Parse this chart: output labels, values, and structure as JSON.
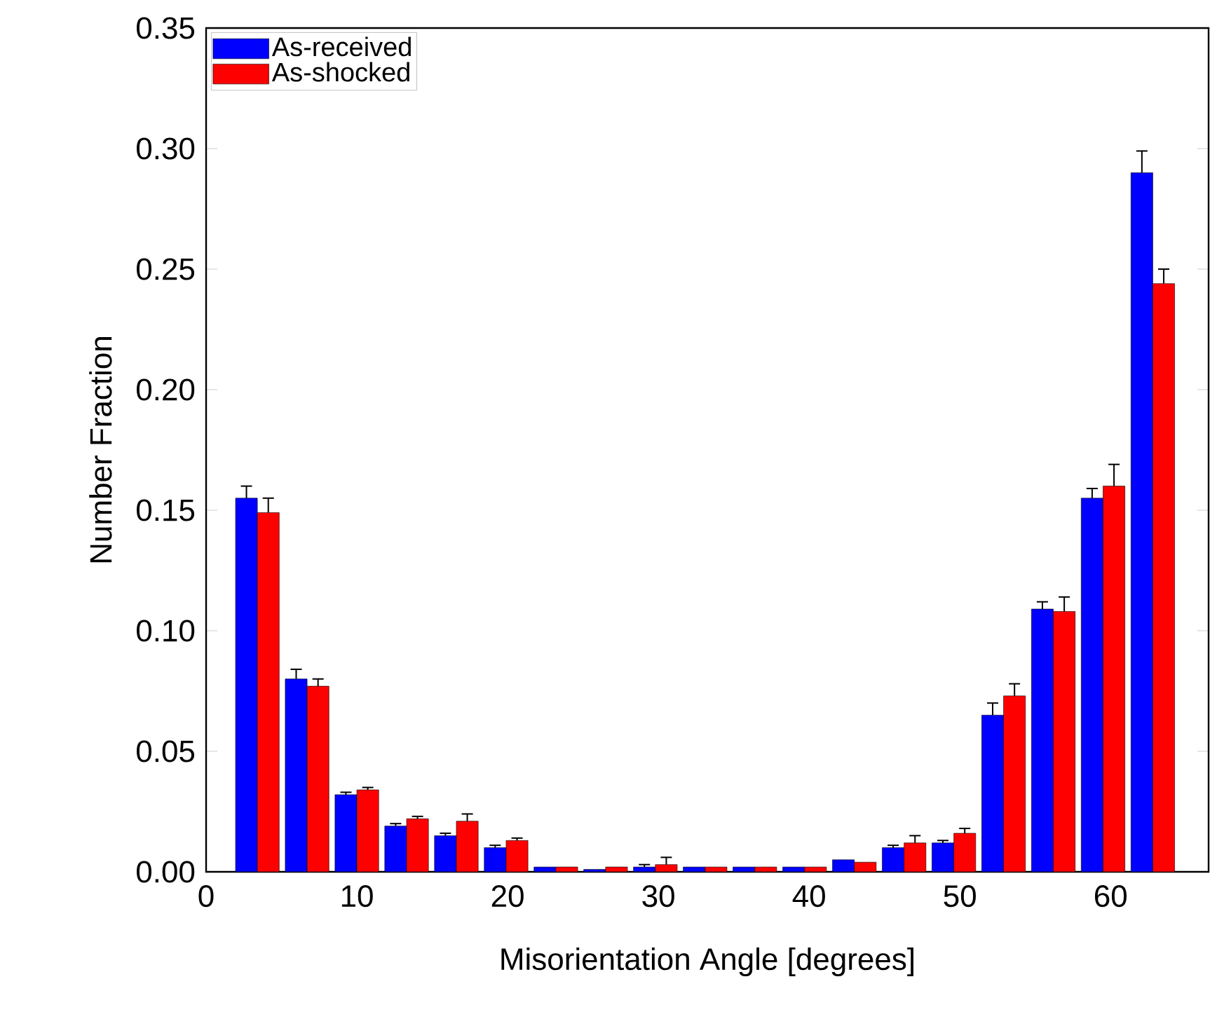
{
  "chart_data": {
    "type": "bar",
    "xlabel": "Misorientation Angle [degrees]",
    "ylabel": "Number Fraction",
    "x": [
      3.4,
      6.7,
      10.0,
      13.3,
      16.6,
      19.9,
      23.2,
      26.5,
      29.8,
      33.1,
      36.4,
      39.7,
      43.0,
      46.3,
      49.6,
      52.9,
      56.2,
      59.5,
      62.8
    ],
    "series": [
      {
        "name": "As-received",
        "color": "#0000ff",
        "values": [
          0.155,
          0.08,
          0.032,
          0.019,
          0.015,
          0.01,
          0.002,
          0.001,
          0.002,
          0.002,
          0.002,
          0.002,
          0.005,
          0.01,
          0.012,
          0.065,
          0.109,
          0.155,
          0.29
        ],
        "errors": [
          0.005,
          0.004,
          0.001,
          0.001,
          0.001,
          0.001,
          null,
          null,
          0.001,
          null,
          null,
          null,
          null,
          0.001,
          0.001,
          0.005,
          0.003,
          0.004,
          0.009
        ]
      },
      {
        "name": "As-shocked",
        "color": "#ff0000",
        "values": [
          0.149,
          0.077,
          0.034,
          0.022,
          0.021,
          0.013,
          0.002,
          0.002,
          0.003,
          0.002,
          0.002,
          0.002,
          0.004,
          0.012,
          0.016,
          0.073,
          0.108,
          0.16,
          0.244
        ],
        "errors": [
          0.006,
          0.003,
          0.001,
          0.001,
          0.003,
          0.001,
          null,
          null,
          0.003,
          null,
          null,
          null,
          null,
          0.003,
          0.002,
          0.005,
          0.006,
          0.009,
          0.006
        ]
      }
    ],
    "xlim": [
      0,
      66.5
    ],
    "xticks": [
      0,
      10,
      20,
      30,
      40,
      50,
      60
    ],
    "ylim": [
      0,
      0.35
    ],
    "yticks": [
      {
        "value": 0,
        "label": "0.00"
      },
      {
        "value": 0.05,
        "label": "0.05"
      },
      {
        "value": 0.1,
        "label": "0.10"
      },
      {
        "value": 0.15,
        "label": "0.15"
      },
      {
        "value": 0.2,
        "label": "0.20"
      },
      {
        "value": 0.25,
        "label": "0.25"
      },
      {
        "value": 0.3,
        "label": "0.30"
      },
      {
        "value": 0.35,
        "label": "0.35"
      }
    ],
    "grid": false,
    "legend": "top left"
  }
}
